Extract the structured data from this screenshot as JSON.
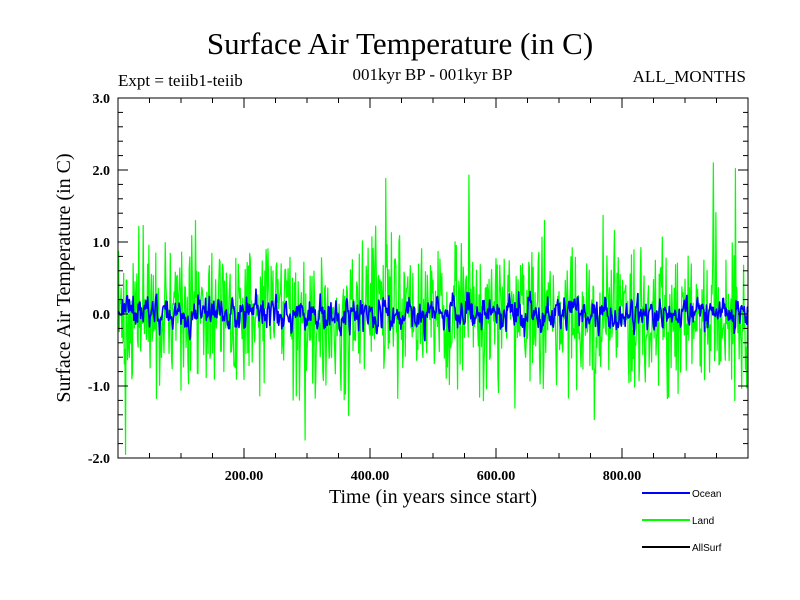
{
  "header": {
    "title": "Surface Air Temperature (in C)",
    "experiment": "Expt = teiib1-teiib",
    "period": "001kyr BP - 001kyr BP",
    "months": "ALL_MONTHS"
  },
  "chart_data": {
    "type": "line",
    "title": "Surface Air Temperature (in C)",
    "xlabel": "Time (in years since start)",
    "ylabel": "Surface Air Temperature (in C)",
    "xlim": [
      0,
      1000
    ],
    "ylim": [
      -2.0,
      3.0
    ],
    "xticks": [
      {
        "value": 200,
        "label": "200.00"
      },
      {
        "value": 400,
        "label": "400.00"
      },
      {
        "value": 600,
        "label": "600.00"
      },
      {
        "value": 800,
        "label": "800.00"
      }
    ],
    "yticks": [
      {
        "value": 3.0,
        "label": "3.0"
      },
      {
        "value": 2.0,
        "label": "2.0"
      },
      {
        "value": 1.0,
        "label": "1.0"
      },
      {
        "value": 0.0,
        "label": "0.0"
      },
      {
        "value": -1.0,
        "label": "-1.0"
      },
      {
        "value": -2.0,
        "label": "-2.0"
      }
    ],
    "grid": false,
    "legend_position": "bottom-right",
    "series": [
      {
        "name": "Ocean",
        "color": "#0000ff",
        "mean": 0.0,
        "range": [
          -0.6,
          0.55
        ]
      },
      {
        "name": "Land",
        "color": "#00ff00",
        "mean": 0.0,
        "range": [
          -1.95,
          2.1
        ]
      },
      {
        "name": "AllSurf",
        "color": "#000000",
        "mean": 0.0
      }
    ],
    "notable_points": [
      {
        "series": "Land",
        "x": 12,
        "y": -1.95
      },
      {
        "series": "Land",
        "x": 297,
        "y": -1.75
      },
      {
        "series": "Land",
        "x": 425,
        "y": 1.88
      },
      {
        "series": "Land",
        "x": 557,
        "y": 1.93
      },
      {
        "series": "Land",
        "x": 945,
        "y": 2.1
      },
      {
        "series": "Land",
        "x": 980,
        "y": 2.02
      }
    ]
  }
}
